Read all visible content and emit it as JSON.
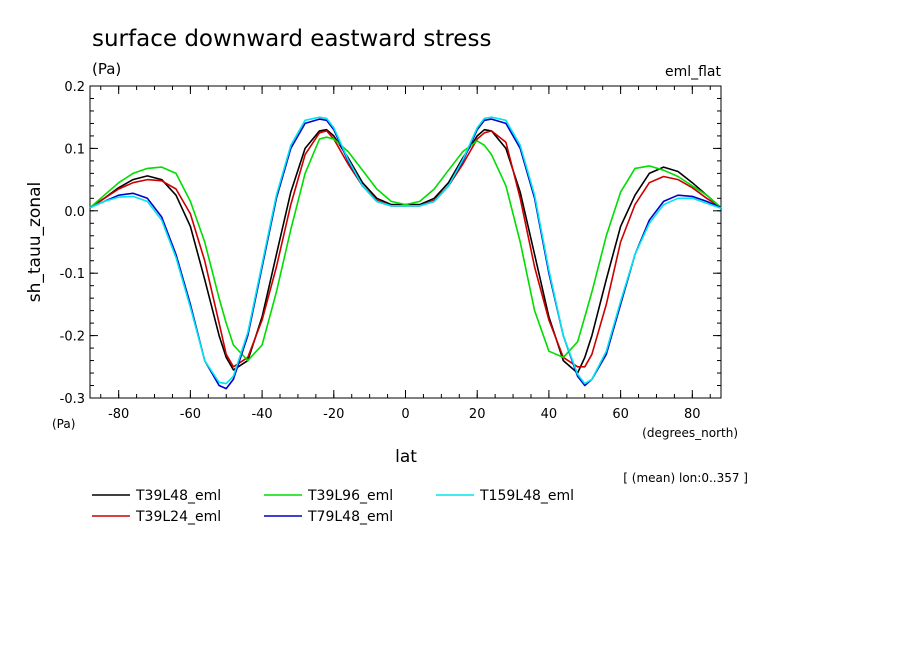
{
  "chart_data": {
    "type": "line",
    "title": "surface downward eastward stress",
    "units": "(Pa)",
    "dataset_label": "eml_flat",
    "xlabel": "lat",
    "ylabel": "sh_tauu_zonal",
    "x_units": "(degrees_north)",
    "y_units": "(Pa)",
    "note": "[ (mean) lon:0..357 ]",
    "xlim": [
      -88,
      88
    ],
    "ylim": [
      -0.3,
      0.2
    ],
    "xticks": [
      "-80",
      "-60",
      "-40",
      "-20",
      "0",
      "20",
      "40",
      "60",
      "80"
    ],
    "xtick_values": [
      -80,
      -60,
      -40,
      -20,
      0,
      20,
      40,
      60,
      80
    ],
    "yticks": [
      "-0.3",
      "-0.2",
      "-0.1",
      "0.0",
      "0.1",
      "0.2"
    ],
    "ytick_values": [
      -0.3,
      -0.2,
      -0.1,
      0.0,
      0.1,
      0.2
    ],
    "grid": false,
    "legend_placement": "bottom",
    "x": [
      -88,
      -84,
      -80,
      -76,
      -72,
      -68,
      -64,
      -60,
      -56,
      -52,
      -50,
      -48,
      -44,
      -40,
      -36,
      -32,
      -28,
      -24,
      -22,
      -20,
      -16,
      -12,
      -8,
      -4,
      0,
      4,
      8,
      12,
      16,
      20,
      22,
      24,
      28,
      32,
      36,
      40,
      44,
      48,
      50,
      52,
      56,
      60,
      64,
      68,
      72,
      76,
      80,
      84,
      88
    ],
    "series": [
      {
        "name": "T39L48_eml",
        "color": "#000000",
        "values": [
          0.005,
          0.02,
          0.037,
          0.05,
          0.056,
          0.05,
          0.025,
          -0.025,
          -0.11,
          -0.2,
          -0.235,
          -0.255,
          -0.24,
          -0.17,
          -0.07,
          0.03,
          0.1,
          0.128,
          0.13,
          0.12,
          0.085,
          0.045,
          0.02,
          0.01,
          0.01,
          0.01,
          0.02,
          0.045,
          0.085,
          0.12,
          0.13,
          0.128,
          0.1,
          0.03,
          -0.07,
          -0.17,
          -0.24,
          -0.26,
          -0.235,
          -0.2,
          -0.11,
          -0.025,
          0.025,
          0.06,
          0.07,
          0.063,
          0.045,
          0.025,
          0.005
        ]
      },
      {
        "name": "T39L24_eml",
        "color": "#cc0000",
        "values": [
          0.005,
          0.02,
          0.035,
          0.045,
          0.05,
          0.048,
          0.035,
          -0.005,
          -0.08,
          -0.18,
          -0.23,
          -0.25,
          -0.235,
          -0.175,
          -0.09,
          0.01,
          0.09,
          0.125,
          0.128,
          0.115,
          0.075,
          0.04,
          0.017,
          0.008,
          0.008,
          0.008,
          0.017,
          0.04,
          0.075,
          0.115,
          0.125,
          0.128,
          0.11,
          0.02,
          -0.09,
          -0.175,
          -0.235,
          -0.25,
          -0.25,
          -0.23,
          -0.15,
          -0.05,
          0.01,
          0.045,
          0.055,
          0.05,
          0.037,
          0.02,
          0.005
        ]
      },
      {
        "name": "T39L96_eml",
        "color": "#00dd00",
        "values": [
          0.005,
          0.025,
          0.045,
          0.06,
          0.068,
          0.07,
          0.06,
          0.015,
          -0.05,
          -0.14,
          -0.18,
          -0.215,
          -0.24,
          -0.215,
          -0.13,
          -0.03,
          0.06,
          0.115,
          0.118,
          0.115,
          0.095,
          0.065,
          0.035,
          0.015,
          0.01,
          0.015,
          0.035,
          0.065,
          0.095,
          0.112,
          0.105,
          0.09,
          0.04,
          -0.05,
          -0.16,
          -0.225,
          -0.235,
          -0.21,
          -0.17,
          -0.13,
          -0.04,
          0.03,
          0.068,
          0.072,
          0.065,
          0.055,
          0.04,
          0.025,
          0.005
        ]
      },
      {
        "name": "T79L48_eml",
        "color": "#0000cc",
        "values": [
          0.005,
          0.015,
          0.025,
          0.028,
          0.02,
          -0.01,
          -0.07,
          -0.15,
          -0.24,
          -0.28,
          -0.285,
          -0.27,
          -0.2,
          -0.09,
          0.02,
          0.1,
          0.14,
          0.147,
          0.145,
          0.13,
          0.08,
          0.04,
          0.015,
          0.008,
          0.008,
          0.008,
          0.015,
          0.04,
          0.08,
          0.13,
          0.145,
          0.147,
          0.14,
          0.1,
          0.02,
          -0.1,
          -0.2,
          -0.265,
          -0.28,
          -0.27,
          -0.23,
          -0.15,
          -0.07,
          -0.015,
          0.015,
          0.025,
          0.023,
          0.015,
          0.005
        ]
      },
      {
        "name": "T159L48_eml",
        "color": "#00e5ee",
        "values": [
          0.005,
          0.015,
          0.022,
          0.023,
          0.015,
          -0.015,
          -0.075,
          -0.155,
          -0.24,
          -0.275,
          -0.277,
          -0.265,
          -0.195,
          -0.085,
          0.025,
          0.105,
          0.145,
          0.15,
          0.148,
          0.133,
          0.082,
          0.04,
          0.015,
          0.008,
          0.008,
          0.008,
          0.015,
          0.04,
          0.082,
          0.133,
          0.148,
          0.15,
          0.145,
          0.105,
          0.025,
          -0.095,
          -0.2,
          -0.262,
          -0.277,
          -0.27,
          -0.225,
          -0.145,
          -0.07,
          -0.02,
          0.01,
          0.02,
          0.02,
          0.012,
          0.004
        ]
      }
    ]
  }
}
